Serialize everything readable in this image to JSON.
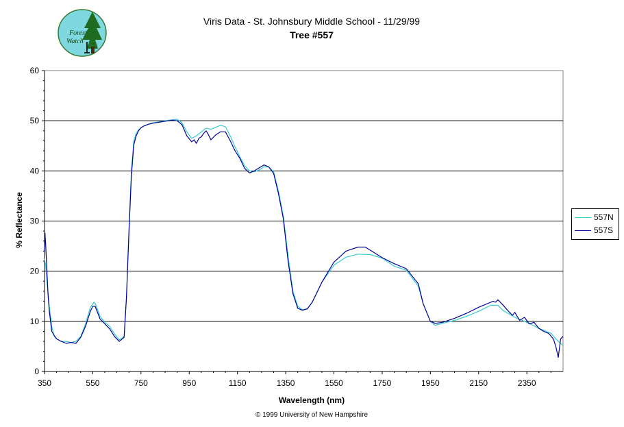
{
  "logo": {
    "line1": "Forest",
    "line2": "Watch",
    "icon": "tree-logo-icon"
  },
  "footer": "© 1999 University of New Hampshire",
  "chart_data": {
    "type": "line",
    "title": "Viris Data - St. Johnsbury Middle School - 11/29/99",
    "subtitle": "Tree #557",
    "xlabel": "Wavelength (nm)",
    "ylabel": "% Reflectance",
    "xlim": [
      350,
      2500
    ],
    "ylim": [
      0,
      60
    ],
    "xticks": [
      350,
      550,
      750,
      950,
      1150,
      1350,
      1550,
      1750,
      1950,
      2150,
      2350
    ],
    "yticks": [
      0,
      10,
      20,
      30,
      40,
      50,
      60
    ],
    "grid": "horizontal major",
    "legend": "right",
    "series": [
      {
        "name": "557N",
        "color": "#33CCCC",
        "x": [
          350,
          355,
          360,
          370,
          380,
          390,
          400,
          420,
          440,
          460,
          480,
          500,
          520,
          540,
          555,
          560,
          580,
          600,
          620,
          640,
          660,
          680,
          690,
          700,
          710,
          720,
          730,
          740,
          750,
          760,
          780,
          800,
          850,
          880,
          900,
          920,
          940,
          960,
          980,
          1000,
          1020,
          1040,
          1060,
          1080,
          1100,
          1120,
          1140,
          1160,
          1180,
          1200,
          1220,
          1240,
          1260,
          1280,
          1300,
          1320,
          1340,
          1360,
          1380,
          1400,
          1420,
          1440,
          1460,
          1480,
          1500,
          1550,
          1600,
          1650,
          1700,
          1750,
          1800,
          1850,
          1900,
          1920,
          1950,
          1970,
          2000,
          2050,
          2100,
          2150,
          2200,
          2230,
          2250,
          2300,
          2350,
          2400,
          2450,
          2480,
          2500
        ],
        "y": [
          22.5,
          21,
          18,
          13,
          9,
          7,
          6.5,
          6,
          6,
          5.8,
          6,
          7,
          9.5,
          12.8,
          13.8,
          13.6,
          11,
          9.8,
          9,
          7.5,
          6.3,
          7,
          15,
          28,
          40,
          46,
          47.5,
          48.2,
          48.6,
          48.9,
          49.3,
          49.6,
          50,
          50.2,
          50.3,
          49.6,
          47.8,
          46.5,
          47,
          47.8,
          48.5,
          48.3,
          48.7,
          49.1,
          48.8,
          47,
          44.8,
          42.8,
          41,
          40,
          39.8,
          40.2,
          40.8,
          40.8,
          39.8,
          36,
          31,
          23,
          16,
          13,
          12.3,
          12.5,
          13.8,
          15.8,
          17.8,
          21.2,
          22.8,
          23.4,
          23.3,
          22.6,
          21,
          20.2,
          17,
          13.5,
          10,
          9.2,
          9.6,
          10.2,
          11,
          12,
          13.2,
          13.2,
          12.2,
          10.8,
          9.8,
          8.6,
          7.6,
          6,
          5.2
        ]
      },
      {
        "name": "557S",
        "color": "#000099",
        "x": [
          350,
          352,
          355,
          360,
          365,
          370,
          380,
          390,
          400,
          420,
          440,
          460,
          480,
          500,
          520,
          540,
          550,
          560,
          580,
          600,
          620,
          640,
          660,
          680,
          690,
          700,
          710,
          720,
          730,
          740,
          750,
          760,
          780,
          800,
          850,
          880,
          900,
          920,
          940,
          960,
          970,
          980,
          990,
          1000,
          1010,
          1020,
          1030,
          1040,
          1060,
          1080,
          1100,
          1120,
          1140,
          1160,
          1180,
          1200,
          1220,
          1240,
          1260,
          1280,
          1300,
          1320,
          1340,
          1360,
          1380,
          1400,
          1420,
          1440,
          1460,
          1480,
          1500,
          1550,
          1600,
          1650,
          1680,
          1700,
          1750,
          1800,
          1850,
          1900,
          1920,
          1950,
          1970,
          2000,
          2050,
          2100,
          2150,
          2200,
          2210,
          2220,
          2230,
          2250,
          2270,
          2290,
          2300,
          2320,
          2340,
          2360,
          2380,
          2400,
          2420,
          2440,
          2460,
          2470,
          2480,
          2490,
          2500
        ],
        "y": [
          24,
          27.6,
          25,
          20,
          15,
          12,
          8,
          7.2,
          6.5,
          6,
          5.6,
          5.8,
          5.6,
          6.8,
          9,
          12,
          13,
          13,
          10.5,
          9.5,
          8.5,
          7,
          6,
          6.8,
          15,
          27.5,
          39,
          45.2,
          47,
          48,
          48.6,
          48.9,
          49.3,
          49.5,
          49.9,
          50.1,
          50,
          49.2,
          47,
          45.8,
          46.2,
          45.5,
          46.5,
          46.8,
          47.5,
          48,
          47.2,
          46.2,
          47.2,
          47.8,
          47.8,
          46,
          44,
          42.5,
          40.5,
          39.6,
          40,
          40.6,
          41.2,
          40.8,
          39.5,
          35.5,
          30.5,
          22,
          15.5,
          12.6,
          12.2,
          12.5,
          13.8,
          15.8,
          17.8,
          21.8,
          24,
          24.8,
          24.8,
          24.2,
          22.7,
          21.5,
          20.5,
          17.5,
          13.5,
          10,
          9.6,
          9.8,
          10.6,
          11.6,
          12.8,
          13.8,
          14,
          13.8,
          14.3,
          13.3,
          12.2,
          11.2,
          11.8,
          10.2,
          10.8,
          9.5,
          9.8,
          8.6,
          8,
          7.6,
          6.5,
          5,
          2.8,
          6.5,
          7
        ]
      }
    ]
  }
}
